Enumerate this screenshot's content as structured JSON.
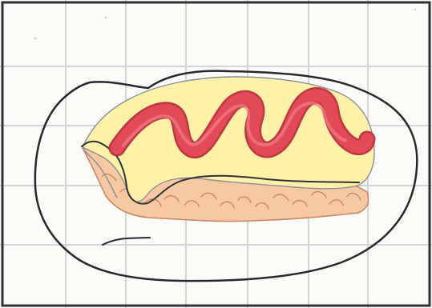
{
  "image": {
    "subject": "omurice-drawing",
    "colors": {
      "paper": "#fbfbf8",
      "grid": "#c6ccd4",
      "frame": "#2f3137",
      "plate_line": "#26282d",
      "egg": "#fff2a8",
      "egg_deep": "#f8df78",
      "sauce": "#e34a57",
      "sauce_dark": "#b82d3d",
      "rice_fill": "#f7c9a3",
      "rice_line": "#c78663",
      "shadow_line": "#8b8f99"
    }
  }
}
